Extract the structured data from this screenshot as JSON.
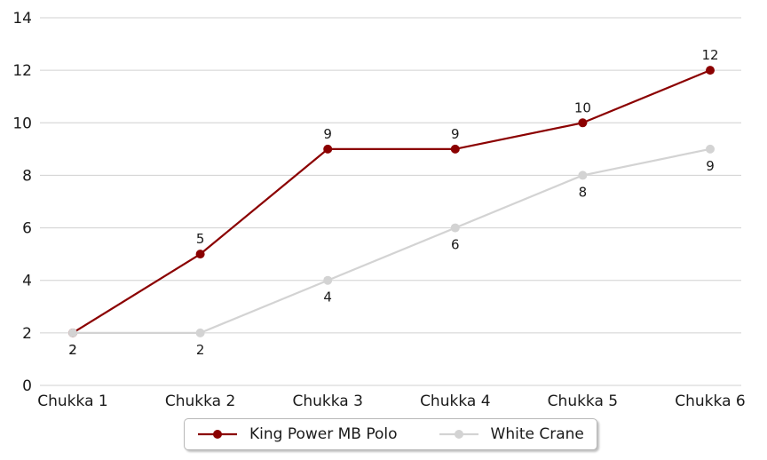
{
  "chart_data": {
    "type": "line",
    "title": "",
    "xlabel": "",
    "ylabel": "",
    "categories": [
      "Chukka 1",
      "Chukka 2",
      "Chukka 3",
      "Chukka 4",
      "Chukka 5",
      "Chukka 6"
    ],
    "series": [
      {
        "name": "King Power MB Polo",
        "values": [
          2,
          5,
          9,
          9,
          10,
          12
        ],
        "color": "#8B0000",
        "marker": "circle",
        "label_positions": [
          "below",
          "above",
          "above",
          "above",
          "above",
          "above"
        ]
      },
      {
        "name": "White Crane",
        "values": [
          2,
          2,
          4,
          6,
          8,
          9
        ],
        "color": "#D3D3D3",
        "marker": "circle",
        "label_positions": [
          "below",
          "below",
          "below",
          "below",
          "below",
          "below"
        ]
      }
    ],
    "ylim": [
      0,
      14
    ],
    "yticks": [
      0,
      2,
      4,
      6,
      8,
      10,
      12,
      14
    ],
    "grid": "horizontal",
    "gridline_color": "#d0d0d0",
    "text_color": "#1a1a1a",
    "legend_position": "bottom-center"
  }
}
